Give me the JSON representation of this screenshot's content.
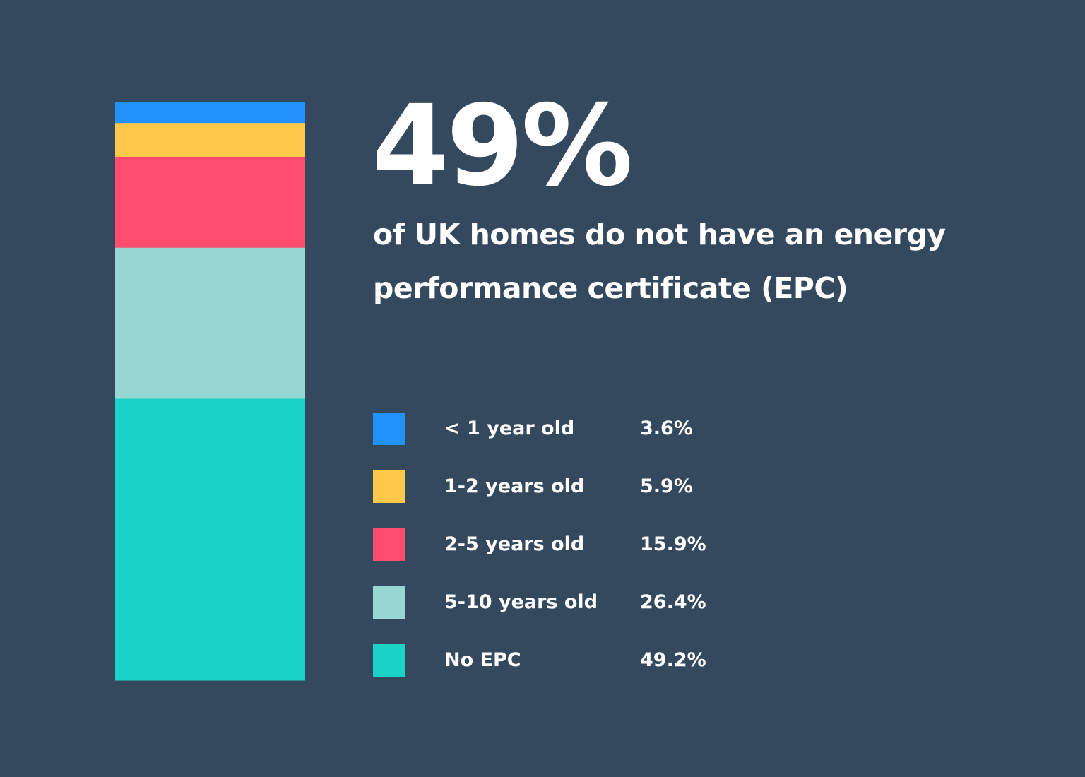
{
  "colors": {
    "background": "#34495e"
  },
  "headline": {
    "percent": "49%",
    "text": "of UK homes do not have an energy performance certificate (EPC)"
  },
  "chart_data": {
    "type": "bar",
    "stacked": true,
    "orientation": "vertical",
    "unit": "%",
    "categories": [
      "< 1 year old",
      "1-2 years old",
      "2-5 years old",
      "5-10 years old",
      "No EPC"
    ],
    "values": [
      3.6,
      5.9,
      15.9,
      26.4,
      49.2
    ],
    "value_labels": [
      "3.6%",
      "5.9%",
      "15.9%",
      "26.4%",
      "49.2%"
    ],
    "colors": [
      "#2291fb",
      "#fec94a",
      "#fe4c70",
      "#96d7d3",
      "#1ad3c6"
    ],
    "stack_order": "first category at top",
    "legend_position": "right",
    "grid": false
  }
}
